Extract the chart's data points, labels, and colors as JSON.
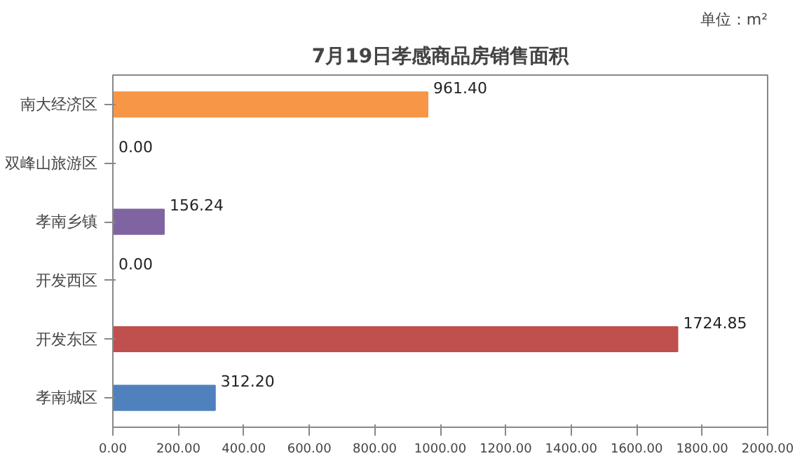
{
  "chart_data": {
    "type": "bar",
    "orientation": "horizontal",
    "title": "7月19日孝感商品房销售面积",
    "annotations": [
      "单位：m²"
    ],
    "categories": [
      "南大经济区",
      "双峰山旅游区",
      "孝南乡镇",
      "开发西区",
      "开发东区",
      "孝南城区"
    ],
    "values": [
      961.4,
      0,
      156.24,
      0,
      1724.85,
      312.2
    ],
    "value_labels": [
      "961.40",
      "0.00",
      "156.24",
      "0.00",
      "1724.85",
      "312.20"
    ],
    "colors": [
      "#f79646",
      "#8064a2",
      "#8064a2",
      "#c0504d",
      "#c0504d",
      "#4f81bd"
    ],
    "xlim": [
      0,
      2000
    ],
    "xticks": [
      {
        "value": 0,
        "label": "0.00"
      },
      {
        "value": 200,
        "label": "200.00"
      },
      {
        "value": 400,
        "label": "400.00"
      },
      {
        "value": 600,
        "label": "600.00"
      },
      {
        "value": 800,
        "label": "800.00"
      },
      {
        "value": 1000,
        "label": "1000.00"
      },
      {
        "value": 1200,
        "label": "1200.00"
      },
      {
        "value": 1400,
        "label": "1400.00"
      },
      {
        "value": 1600,
        "label": "1600.00"
      },
      {
        "value": 1800,
        "label": "1800.00"
      },
      {
        "value": 2000,
        "label": "2000.00"
      }
    ],
    "grid": false
  }
}
